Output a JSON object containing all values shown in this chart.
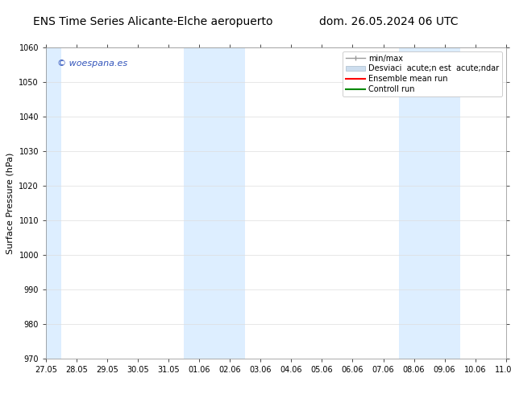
{
  "title_left": "ENS Time Series Alicante-Elche aeropuerto",
  "title_right": "dom. 26.05.2024 06 UTC",
  "ylabel": "Surface Pressure (hPa)",
  "ylim": [
    970,
    1060
  ],
  "yticks": [
    970,
    980,
    990,
    1000,
    1010,
    1020,
    1030,
    1040,
    1050,
    1060
  ],
  "xtick_labels": [
    "27.05",
    "28.05",
    "29.05",
    "30.05",
    "31.05",
    "01.06",
    "02.06",
    "03.06",
    "04.06",
    "05.06",
    "06.06",
    "07.06",
    "08.06",
    "09.06",
    "10.06",
    "11.06"
  ],
  "band_color": "#ddeeff",
  "bg_color": "#ffffff",
  "watermark": "© woespana.es",
  "watermark_color": "#3355bb",
  "legend_minmax": "min/max",
  "legend_std": "Desviaci  acute;n est  acute;ndar",
  "legend_ens": "Ensemble mean run",
  "legend_ctrl": "Controll run",
  "minmax_color": "#999999",
  "std_color": "#ccddee",
  "ens_color": "#ff0000",
  "ctrl_color": "#008800",
  "title_fontsize": 10,
  "tick_fontsize": 7,
  "ylabel_fontsize": 8,
  "legend_fontsize": 7
}
